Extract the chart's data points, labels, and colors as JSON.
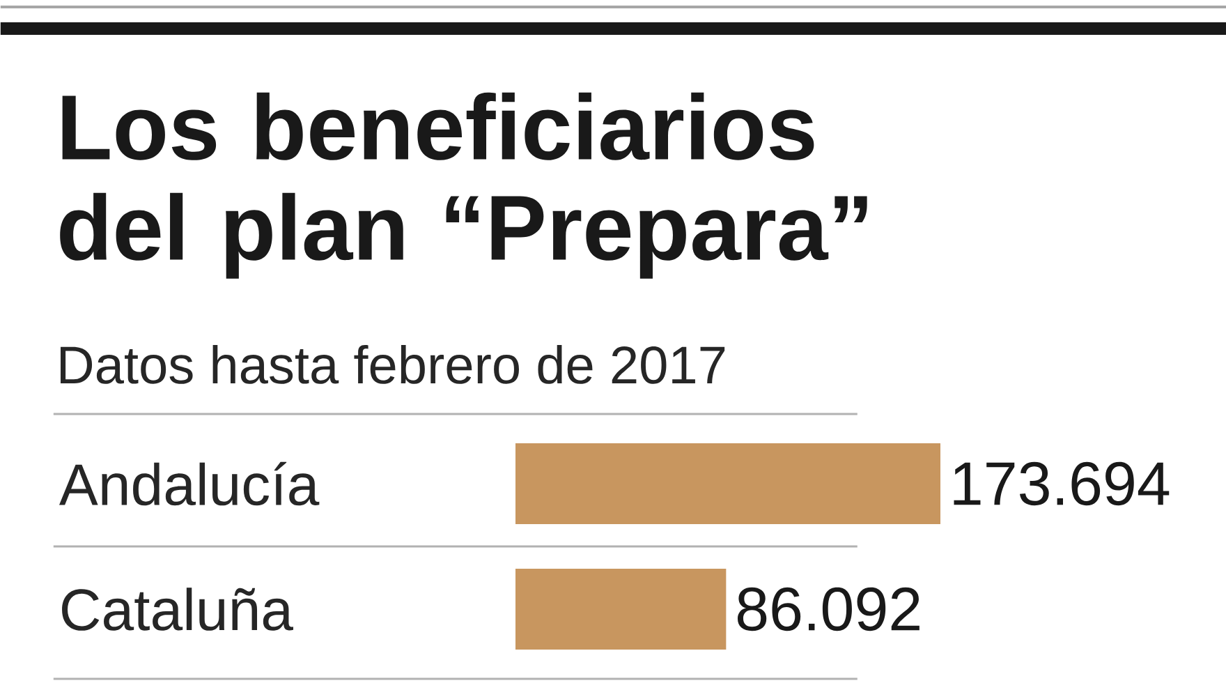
{
  "chart_data": {
    "type": "bar",
    "orientation": "horizontal",
    "title": "Los beneficiarios del plan “Prepara”",
    "subtitle": "Datos hasta febrero de 2017",
    "categories": [
      "Andalucía",
      "Cataluña"
    ],
    "values": [
      173694,
      86092
    ],
    "value_labels": [
      "173.694",
      "86.092"
    ],
    "color": "#c8965f"
  }
}
